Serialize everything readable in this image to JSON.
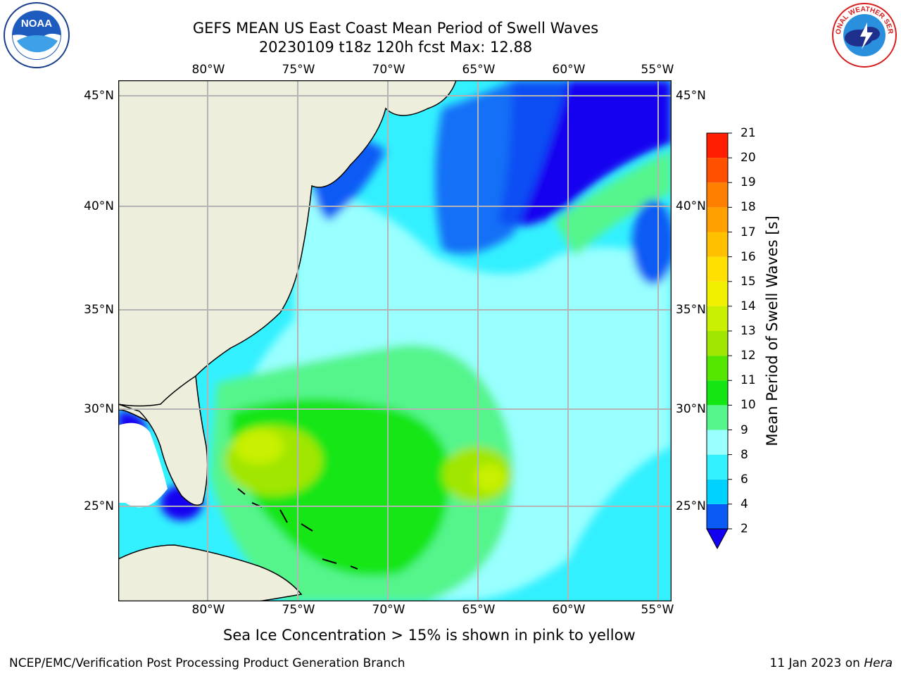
{
  "title": {
    "line1": "GEFS MEAN US East Coast Mean Period of Swell Waves",
    "line2": "20230109 t18z 120h fcst   Max: 12.88"
  },
  "logos": {
    "left": {
      "name": "noaa-logo",
      "text": "NOAA"
    },
    "right": {
      "name": "national-weather-service-logo",
      "text": "NATIONAL WEATHER SERVICE"
    }
  },
  "axes": {
    "lon_labels": [
      "80°W",
      "75°W",
      "70°W",
      "65°W",
      "60°W",
      "55°W"
    ],
    "lat_labels": [
      "45°N",
      "40°N",
      "35°N",
      "30°N",
      "25°N"
    ]
  },
  "colorbar": {
    "label": "Mean Period of Swell Waves [s]",
    "ticks": [
      "2",
      "4",
      "6",
      "8",
      "9",
      "10",
      "11",
      "12",
      "13",
      "14",
      "15",
      "16",
      "17",
      "18",
      "19",
      "20",
      "21"
    ],
    "colors": [
      "#0a5af5",
      "#00d2ff",
      "#33f0ff",
      "#99ffff",
      "#55f58c",
      "#14e614",
      "#55e600",
      "#a0e600",
      "#c8f000",
      "#f0f000",
      "#ffe000",
      "#ffc000",
      "#ffa000",
      "#ff8000",
      "#ff5000",
      "#ff1e00"
    ],
    "under_color": "#1400f0"
  },
  "map": {
    "land_color": "#eeeedc",
    "water_default": "#33f0ff",
    "max_value": 12.88
  },
  "footer": {
    "note": "Sea Ice Concentration > 15% is shown in pink to yellow",
    "left": "NCEP/EMC/Verification Post Processing Product Generation Branch",
    "date": "11 Jan 2023 on ",
    "machine": "Hera"
  }
}
